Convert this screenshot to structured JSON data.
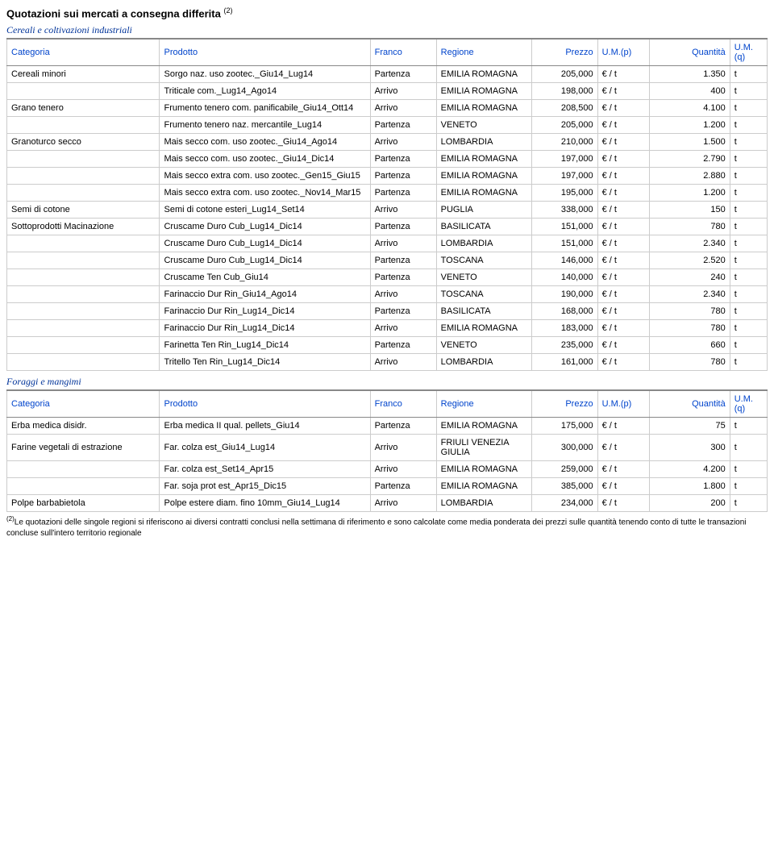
{
  "doc_title": "Quotazioni sui mercati a consegna differita",
  "doc_title_sup": "(2)",
  "sections": [
    {
      "title": "Cereali e coltivazioni industriali",
      "headers": [
        "Categoria",
        "Prodotto",
        "Franco",
        "Regione",
        "Prezzo",
        "U.M.(p)",
        "Quantità",
        "U.M.(q)"
      ],
      "rows": [
        [
          "Cereali minori",
          "Sorgo naz. uso zootec._Giu14_Lug14",
          "Partenza",
          "EMILIA ROMAGNA",
          "205,000",
          "€ / t",
          "1.350",
          "t"
        ],
        [
          "",
          "Triticale com._Lug14_Ago14",
          "Arrivo",
          "EMILIA ROMAGNA",
          "198,000",
          "€ / t",
          "400",
          "t"
        ],
        [
          "Grano tenero",
          "Frumento tenero com. panificabile_Giu14_Ott14",
          "Arrivo",
          "EMILIA ROMAGNA",
          "208,500",
          "€ / t",
          "4.100",
          "t"
        ],
        [
          "",
          "Frumento tenero naz. mercantile_Lug14",
          "Partenza",
          "VENETO",
          "205,000",
          "€ / t",
          "1.200",
          "t"
        ],
        [
          "Granoturco secco",
          "Mais secco com. uso zootec._Giu14_Ago14",
          "Arrivo",
          "LOMBARDIA",
          "210,000",
          "€ / t",
          "1.500",
          "t"
        ],
        [
          "",
          "Mais secco com. uso zootec._Giu14_Dic14",
          "Partenza",
          "EMILIA ROMAGNA",
          "197,000",
          "€ / t",
          "2.790",
          "t"
        ],
        [
          "",
          "Mais secco extra com. uso zootec._Gen15_Giu15",
          "Partenza",
          "EMILIA ROMAGNA",
          "197,000",
          "€ / t",
          "2.880",
          "t"
        ],
        [
          "",
          "Mais secco extra com. uso zootec._Nov14_Mar15",
          "Partenza",
          "EMILIA ROMAGNA",
          "195,000",
          "€ / t",
          "1.200",
          "t"
        ],
        [
          "Semi di cotone",
          "Semi di cotone esteri_Lug14_Set14",
          "Arrivo",
          "PUGLIA",
          "338,000",
          "€ / t",
          "150",
          "t"
        ],
        [
          "Sottoprodotti Macinazione",
          "Cruscame Duro Cub_Lug14_Dic14",
          "Partenza",
          "BASILICATA",
          "151,000",
          "€ / t",
          "780",
          "t"
        ],
        [
          "",
          "Cruscame Duro Cub_Lug14_Dic14",
          "Arrivo",
          "LOMBARDIA",
          "151,000",
          "€ / t",
          "2.340",
          "t"
        ],
        [
          "",
          "Cruscame Duro Cub_Lug14_Dic14",
          "Partenza",
          "TOSCANA",
          "146,000",
          "€ / t",
          "2.520",
          "t"
        ],
        [
          "",
          "Cruscame Ten Cub_Giu14",
          "Partenza",
          "VENETO",
          "140,000",
          "€ / t",
          "240",
          "t"
        ],
        [
          "",
          "Farinaccio Dur Rin_Giu14_Ago14",
          "Arrivo",
          "TOSCANA",
          "190,000",
          "€ / t",
          "2.340",
          "t"
        ],
        [
          "",
          "Farinaccio Dur Rin_Lug14_Dic14",
          "Partenza",
          "BASILICATA",
          "168,000",
          "€ / t",
          "780",
          "t"
        ],
        [
          "",
          "Farinaccio Dur Rin_Lug14_Dic14",
          "Arrivo",
          "EMILIA ROMAGNA",
          "183,000",
          "€ / t",
          "780",
          "t"
        ],
        [
          "",
          "Farinetta Ten Rin_Lug14_Dic14",
          "Partenza",
          "VENETO",
          "235,000",
          "€ / t",
          "660",
          "t"
        ],
        [
          "",
          "Tritello Ten Rin_Lug14_Dic14",
          "Arrivo",
          "LOMBARDIA",
          "161,000",
          "€ / t",
          "780",
          "t"
        ]
      ]
    },
    {
      "title": "Foraggi e mangimi",
      "headers": [
        "Categoria",
        "Prodotto",
        "Franco",
        "Regione",
        "Prezzo",
        "U.M.(p)",
        "Quantità",
        "U.M.(q)"
      ],
      "rows": [
        [
          "Erba medica disidr.",
          "Erba medica II qual. pellets_Giu14",
          "Partenza",
          "EMILIA ROMAGNA",
          "175,000",
          "€ / t",
          "75",
          "t"
        ],
        [
          "Farine vegetali di estrazione",
          "Far. colza est_Giu14_Lug14",
          "Arrivo",
          "FRIULI VENEZIA GIULIA",
          "300,000",
          "€ / t",
          "300",
          "t"
        ],
        [
          "",
          "Far. colza est_Set14_Apr15",
          "Arrivo",
          "EMILIA ROMAGNA",
          "259,000",
          "€ / t",
          "4.200",
          "t"
        ],
        [
          "",
          "Far. soja prot est_Apr15_Dic15",
          "Partenza",
          "EMILIA ROMAGNA",
          "385,000",
          "€ / t",
          "1.800",
          "t"
        ],
        [
          "Polpe barbabietola",
          "Polpe estere diam. fino 10mm_Giu14_Lug14",
          "Arrivo",
          "LOMBARDIA",
          "234,000",
          "€ / t",
          "200",
          "t"
        ]
      ]
    }
  ],
  "footnote_sup": "(2)",
  "footnote": "Le quotazioni delle singole regioni si riferiscono ai diversi contratti conclusi nella settimana di riferimento e sono calcolate come media ponderata dei prezzi sulle quantità tenendo conto di tutte le transazioni concluse sull'intero territorio regionale"
}
